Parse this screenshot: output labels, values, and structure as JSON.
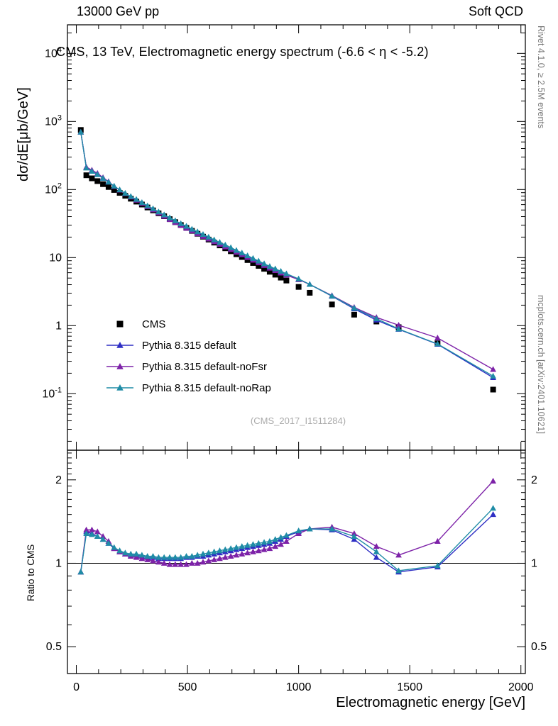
{
  "header": {
    "left": "13000 GeV pp",
    "right": "Soft QCD"
  },
  "watermark": "(CMS_2017_I1511284)",
  "side_notes": {
    "top_right": "Rivet 4.1.0, ≥ 2.5M events",
    "bottom_right": "mcplots.cern.ch [arXiv:2401.10621]"
  },
  "chart_data": {
    "type": "line",
    "title": "CMS, 13 TeV, Electromagnetic energy spectrum (-6.6 < η < -5.2)",
    "xlabel": "Electromagnetic energy [GeV]",
    "ylabel_main": "dσ/dE[μb/GeV]",
    "ylabel_ratio": "Ratio to CMS",
    "x_scale": "linear",
    "y_scale_main": "log",
    "y_scale_ratio": "log",
    "xlim": [
      -40,
      2020
    ],
    "ylim_main_log10": [
      -1.83,
      4.42
    ],
    "ylim_ratio_log10": [
      -0.398,
      0.408
    ],
    "x_ticks": [
      0,
      500,
      1000,
      1500,
      2000
    ],
    "x_minor_step": 100,
    "y_major_exponents_main": [
      -1,
      0,
      1,
      2,
      3,
      4
    ],
    "ratio_ticks": [
      0.5,
      1,
      2
    ],
    "ratio_minor_ticks": [
      0.4,
      0.6,
      0.7,
      0.8,
      0.9,
      1.1,
      1.2,
      1.3,
      1.4,
      1.5,
      1.6,
      1.7,
      1.8,
      1.9,
      2.1,
      2.2,
      2.3,
      2.4,
      2.5
    ],
    "reference_line_ratio": 1,
    "legend_position": "inside-left-lower",
    "grid": false,
    "x": [
      20,
      45,
      70,
      95,
      120,
      145,
      170,
      195,
      220,
      245,
      270,
      295,
      320,
      345,
      370,
      395,
      420,
      445,
      470,
      495,
      520,
      545,
      570,
      595,
      620,
      645,
      670,
      695,
      720,
      745,
      770,
      795,
      820,
      845,
      870,
      895,
      920,
      945,
      1000,
      1050,
      1150,
      1250,
      1350,
      1450,
      1625,
      1875
    ],
    "cms": {
      "name": "CMS",
      "color": "#000000",
      "marker": "square",
      "y": [
        750,
        162,
        146,
        133,
        120,
        109,
        98.6,
        89.3,
        80.9,
        73.3,
        66.4,
        60.2,
        54.5,
        49.4,
        44.7,
        40.5,
        36.7,
        33.2,
        30.1,
        27.3,
        24.7,
        22.4,
        20.3,
        18.4,
        16.6,
        15.1,
        13.7,
        12.4,
        11.2,
        10.2,
        9.2,
        8.33,
        7.55,
        6.84,
        6.19,
        5.61,
        5.08,
        4.6,
        3.71,
        3.04,
        2.05,
        1.45,
        1.15,
        0.95,
        0.55,
        0.115
      ]
    },
    "series": [
      {
        "name": "Pythia 8.315 default",
        "color": "#2e2ec4",
        "marker": "triangle",
        "ratio_to_cms": [
          0.93,
          1.3,
          1.28,
          1.25,
          1.22,
          1.18,
          1.13,
          1.1,
          1.08,
          1.07,
          1.07,
          1.06,
          1.05,
          1.05,
          1.04,
          1.04,
          1.04,
          1.04,
          1.04,
          1.05,
          1.05,
          1.06,
          1.06,
          1.07,
          1.08,
          1.09,
          1.1,
          1.11,
          1.12,
          1.13,
          1.14,
          1.15,
          1.16,
          1.17,
          1.18,
          1.2,
          1.22,
          1.25,
          1.3,
          1.33,
          1.32,
          1.22,
          1.05,
          0.93,
          0.97,
          1.5
        ]
      },
      {
        "name": "Pythia 8.315 default-noFsr",
        "color": "#7d22a8",
        "marker": "triangle",
        "ratio_to_cms": [
          0.93,
          1.32,
          1.32,
          1.3,
          1.25,
          1.2,
          1.13,
          1.1,
          1.08,
          1.06,
          1.05,
          1.04,
          1.03,
          1.02,
          1.01,
          1.0,
          0.99,
          0.99,
          0.99,
          0.99,
          1.0,
          1.0,
          1.01,
          1.02,
          1.03,
          1.04,
          1.05,
          1.06,
          1.07,
          1.08,
          1.09,
          1.1,
          1.11,
          1.12,
          1.13,
          1.15,
          1.17,
          1.2,
          1.28,
          1.33,
          1.35,
          1.28,
          1.15,
          1.07,
          1.2,
          1.98
        ]
      },
      {
        "name": "Pythia 8.315 default-noRap",
        "color": "#1f8ca6",
        "marker": "triangle",
        "ratio_to_cms": [
          0.93,
          1.28,
          1.27,
          1.25,
          1.22,
          1.18,
          1.14,
          1.11,
          1.09,
          1.08,
          1.08,
          1.07,
          1.06,
          1.06,
          1.05,
          1.05,
          1.05,
          1.05,
          1.05,
          1.06,
          1.06,
          1.07,
          1.08,
          1.09,
          1.1,
          1.11,
          1.12,
          1.13,
          1.14,
          1.15,
          1.16,
          1.17,
          1.18,
          1.19,
          1.2,
          1.22,
          1.24,
          1.26,
          1.31,
          1.33,
          1.33,
          1.25,
          1.1,
          0.94,
          0.98,
          1.58
        ]
      }
    ],
    "mc_note": "MC cross-section values = cms.y × ratio_to_cms"
  }
}
